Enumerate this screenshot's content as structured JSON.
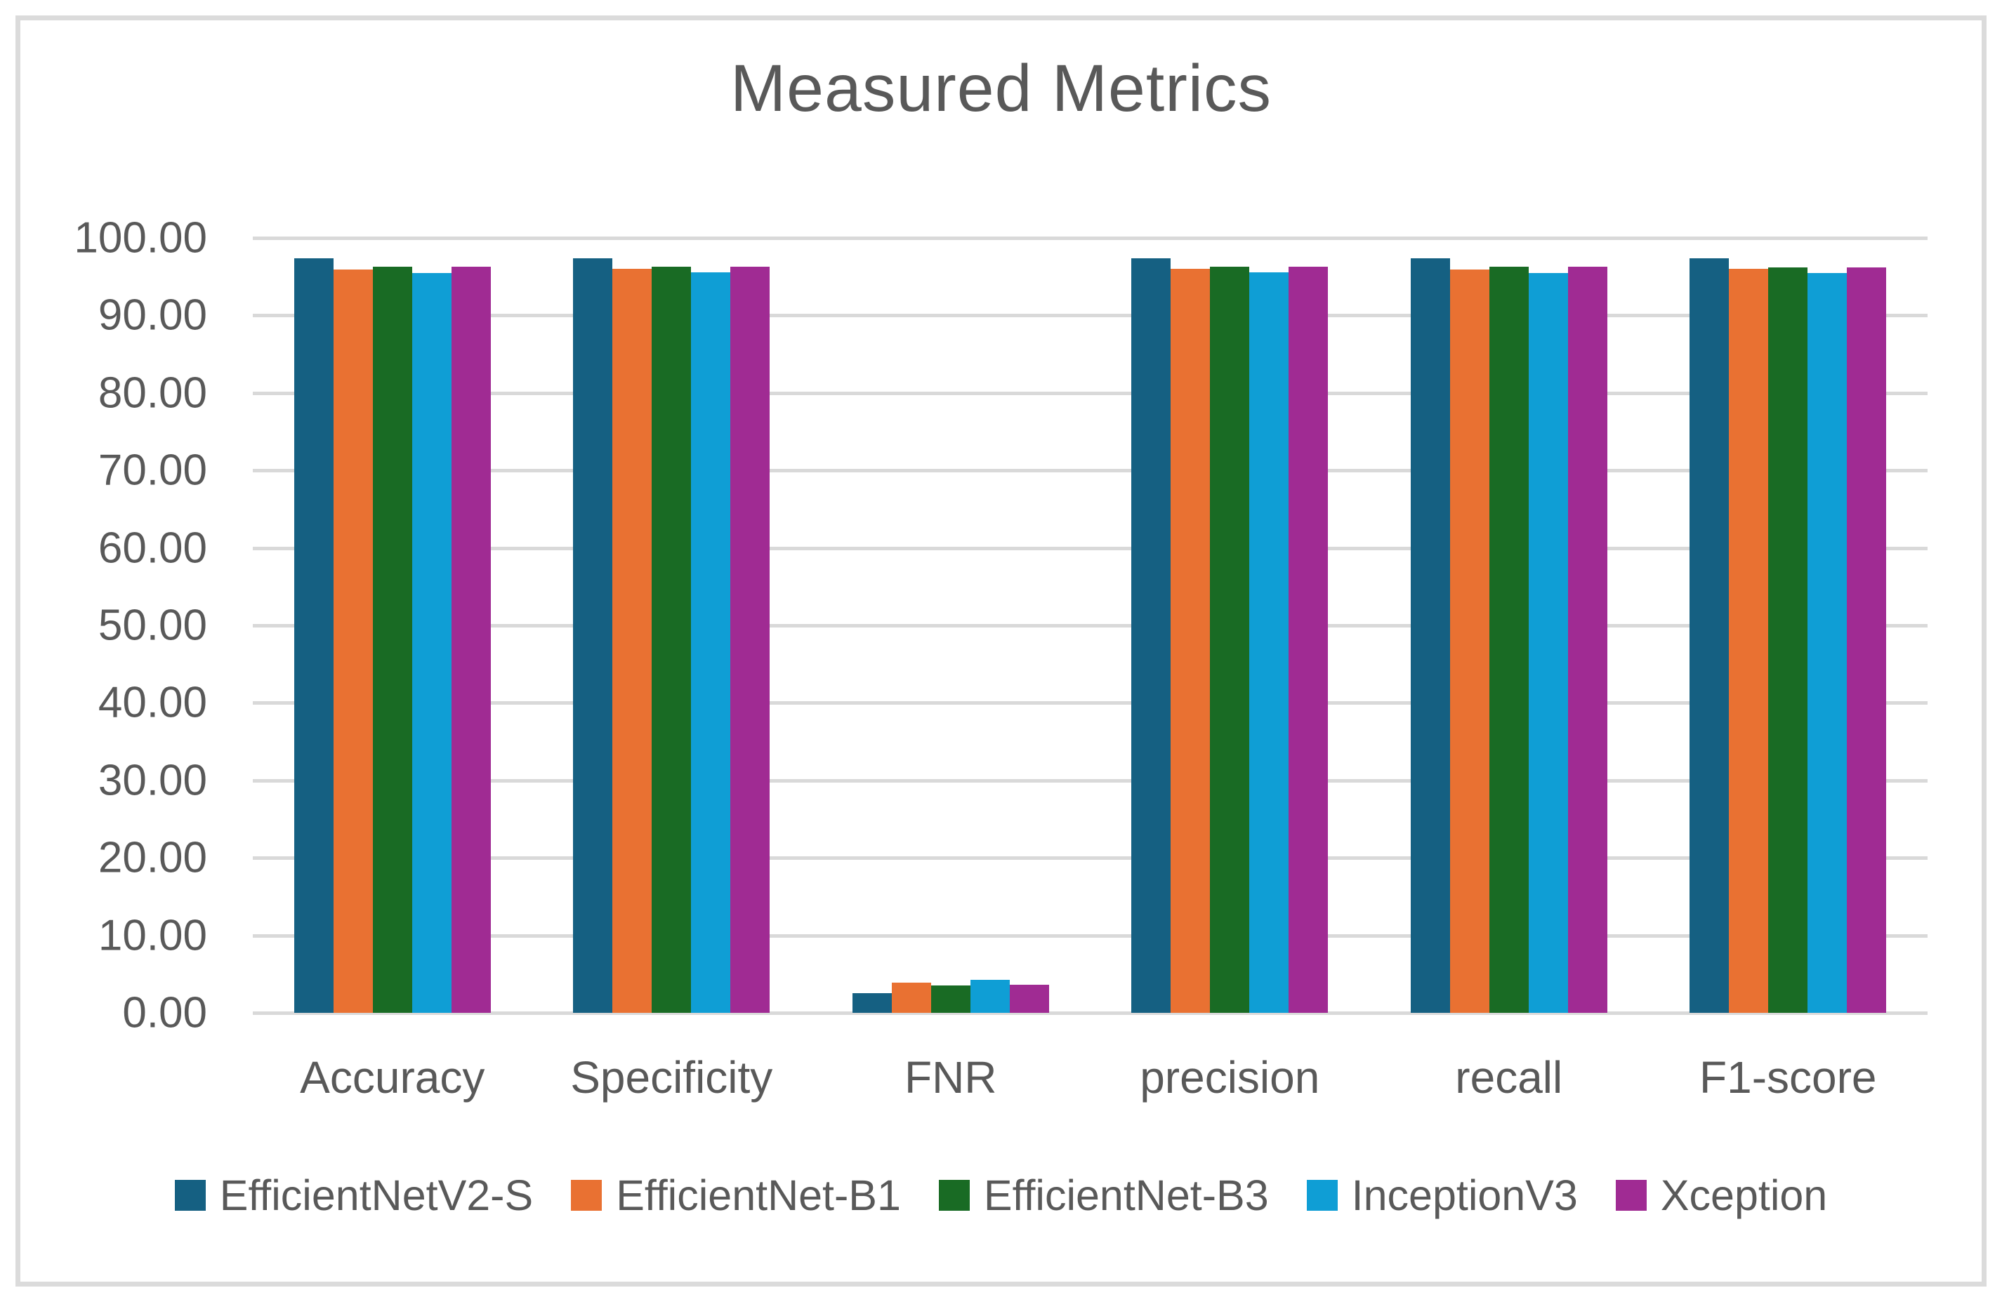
{
  "chart_data": {
    "type": "bar",
    "title": "Measured Metrics",
    "categories": [
      "Accuracy",
      "Specificity",
      "FNR",
      "precision",
      "recall",
      "F1-score"
    ],
    "series": [
      {
        "name": "EfficientNetV2-S",
        "color": "#156082",
        "values": [
          97.4,
          97.4,
          2.5,
          97.4,
          97.4,
          97.4
        ]
      },
      {
        "name": "EfficientNet-B1",
        "color": "#E97132",
        "values": [
          95.9,
          96.0,
          3.9,
          96.0,
          95.9,
          96.0
        ]
      },
      {
        "name": "EfficientNet-B3",
        "color": "#196B24",
        "values": [
          96.3,
          96.3,
          3.5,
          96.3,
          96.3,
          96.2
        ]
      },
      {
        "name": "InceptionV3",
        "color": "#0F9ED5",
        "values": [
          95.5,
          95.6,
          4.3,
          95.6,
          95.5,
          95.5
        ]
      },
      {
        "name": "Xception",
        "color": "#A02B93",
        "values": [
          96.3,
          96.3,
          3.6,
          96.3,
          96.3,
          96.2
        ]
      }
    ],
    "ylim": [
      0,
      100
    ],
    "y_tick_step": 10,
    "y_tick_labels": [
      "0.00",
      "10.00",
      "20.00",
      "30.00",
      "40.00",
      "50.00",
      "60.00",
      "70.00",
      "80.00",
      "90.00",
      "100.00"
    ],
    "grid": "horizontal",
    "gridline_color": "#D9D9D9",
    "legend_position": "bottom",
    "text_color": "#595959",
    "frame_border_color": "#DBDBDB"
  }
}
